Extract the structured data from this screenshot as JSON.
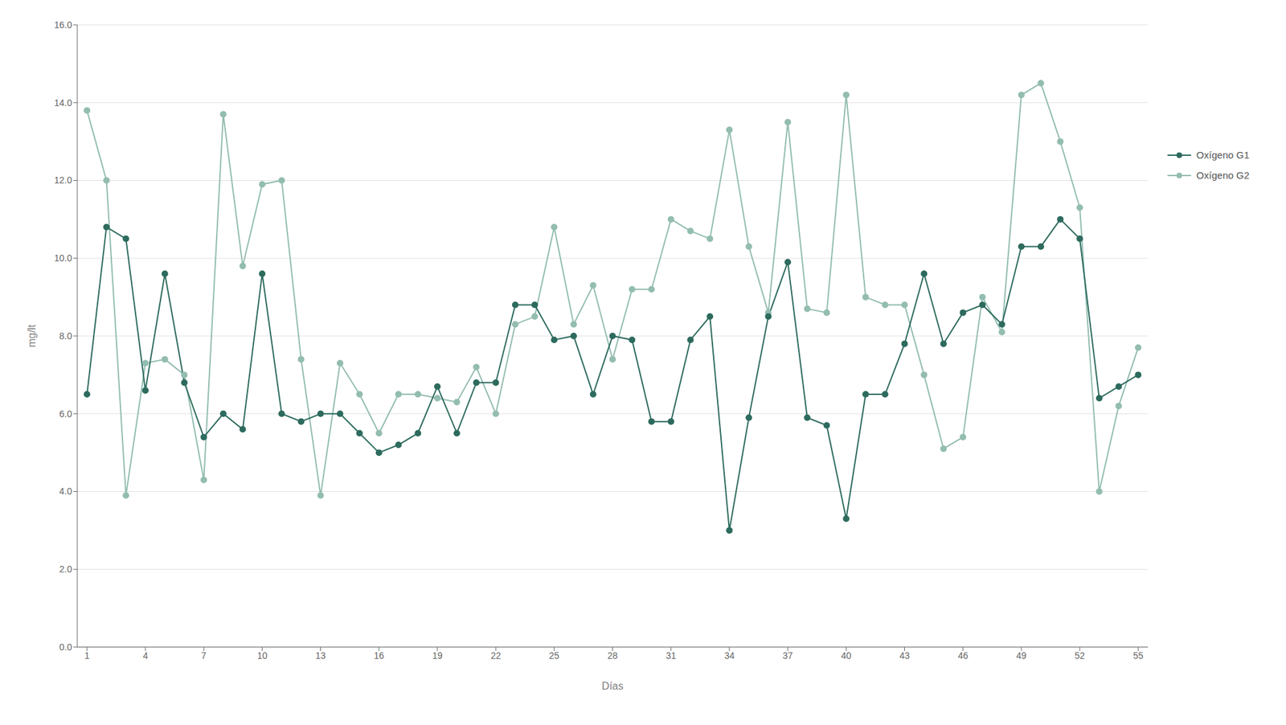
{
  "chart_data": {
    "type": "line",
    "xlabel": "Días",
    "ylabel": "mg/lt",
    "x": [
      1,
      2,
      3,
      4,
      5,
      6,
      7,
      8,
      9,
      10,
      11,
      12,
      13,
      14,
      15,
      16,
      17,
      18,
      19,
      20,
      21,
      22,
      23,
      24,
      25,
      26,
      27,
      28,
      29,
      30,
      31,
      32,
      33,
      34,
      35,
      36,
      37,
      38,
      39,
      40,
      41,
      42,
      43,
      44,
      45,
      46,
      47,
      48,
      49,
      50,
      51,
      52,
      53,
      54,
      55
    ],
    "series": [
      {
        "name": "Oxígeno G1",
        "color": "#2d6b5e",
        "marker": "circle",
        "values": [
          6.5,
          10.8,
          10.5,
          6.6,
          9.6,
          6.8,
          5.4,
          6.0,
          5.6,
          9.6,
          6.0,
          5.8,
          6.0,
          6.0,
          5.5,
          5.0,
          5.2,
          5.5,
          6.7,
          5.5,
          6.8,
          6.8,
          8.8,
          8.8,
          7.9,
          8.0,
          6.5,
          8.0,
          7.9,
          5.8,
          5.8,
          7.9,
          8.5,
          3.0,
          5.9,
          8.5,
          9.9,
          5.9,
          5.7,
          3.3,
          6.5,
          6.5,
          7.8,
          9.6,
          7.8,
          8.6,
          8.8,
          8.3,
          10.3,
          10.3,
          11.0,
          10.5,
          6.4,
          6.7,
          7.0
        ]
      },
      {
        "name": "Oxígeno G2",
        "color": "#93bdb0",
        "marker": "circle",
        "values": [
          13.8,
          12.0,
          3.9,
          7.3,
          7.4,
          7.0,
          4.3,
          13.7,
          9.8,
          11.9,
          12.0,
          7.4,
          3.9,
          7.3,
          6.5,
          5.5,
          6.5,
          6.5,
          6.4,
          6.3,
          7.2,
          6.0,
          8.3,
          8.5,
          10.8,
          8.3,
          9.3,
          7.4,
          9.2,
          9.2,
          11.0,
          10.7,
          10.5,
          13.3,
          10.3,
          8.6,
          13.5,
          8.7,
          8.6,
          14.2,
          9.0,
          8.8,
          8.8,
          7.0,
          5.1,
          5.4,
          9.0,
          8.1,
          14.2,
          14.5,
          13.0,
          11.3,
          4.0,
          6.2,
          7.7
        ]
      }
    ],
    "xlim": [
      0.5,
      55.5
    ],
    "xticks": [
      1,
      4,
      7,
      10,
      13,
      16,
      19,
      22,
      25,
      28,
      31,
      34,
      37,
      40,
      43,
      46,
      49,
      52,
      55
    ],
    "ylim": [
      0.0,
      16.0
    ],
    "yticks": [
      {
        "value": 0,
        "label": "0.0"
      },
      {
        "value": 2,
        "label": "2.0"
      },
      {
        "value": 4,
        "label": "4.0"
      },
      {
        "value": 6,
        "label": "6.0"
      },
      {
        "value": 8,
        "label": "8.0"
      },
      {
        "value": 10,
        "label": "10.0"
      },
      {
        "value": 12,
        "label": "12.0"
      },
      {
        "value": 14,
        "label": "14.0"
      },
      {
        "value": 16,
        "label": "16.0"
      }
    ],
    "grid": true,
    "legend": "right"
  }
}
